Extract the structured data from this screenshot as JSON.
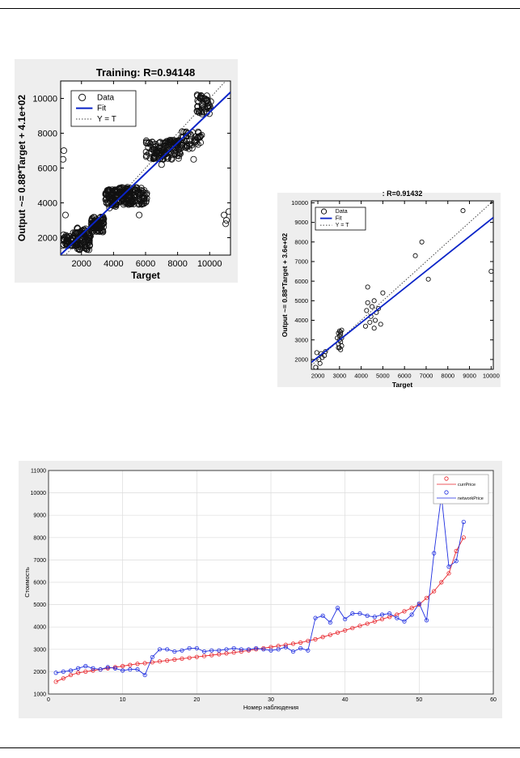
{
  "chart_data": [
    {
      "type": "scatter",
      "title": "Training: R=0.94148",
      "xlabel": "Target",
      "ylabel": "Output ~= 0.88*Target + 4.1e+02",
      "xlim": [
        700,
        11300
      ],
      "ylim": [
        1000,
        11000
      ],
      "xticks": [
        2000,
        4000,
        6000,
        8000,
        10000
      ],
      "yticks": [
        2000,
        4000,
        6000,
        8000,
        10000
      ],
      "legend": {
        "placement": "top-left",
        "entries": [
          "Data",
          "Fit",
          "Y = T"
        ]
      },
      "fit": {
        "slope": 0.88,
        "intercept": 410
      },
      "clusters": [
        {
          "x": [
            800,
            1700
          ],
          "y": [
            1500,
            2300
          ],
          "n": 60
        },
        {
          "x": [
            1700,
            2600
          ],
          "y": [
            1300,
            2600
          ],
          "n": 90
        },
        {
          "x": [
            2600,
            3400
          ],
          "y": [
            2300,
            3200
          ],
          "n": 90
        },
        {
          "x": [
            3500,
            4200
          ],
          "y": [
            3700,
            4800
          ],
          "n": 80
        },
        {
          "x": [
            4200,
            6100
          ],
          "y": [
            3900,
            4900
          ],
          "n": 150
        },
        {
          "x": [
            6000,
            8200
          ],
          "y": [
            6500,
            7600
          ],
          "n": 140
        },
        {
          "x": [
            8200,
            9500
          ],
          "y": [
            7100,
            8100
          ],
          "n": 50
        },
        {
          "x": [
            9200,
            10100
          ],
          "y": [
            9100,
            10300
          ],
          "n": 45
        }
      ],
      "outliers": [
        [
          1000,
          3300
        ],
        [
          900,
          7000
        ],
        [
          850,
          6500
        ],
        [
          10900,
          3300
        ],
        [
          11050,
          3000
        ],
        [
          11200,
          3500
        ],
        [
          11000,
          2800
        ],
        [
          7000,
          6200
        ],
        [
          5600,
          3300
        ],
        [
          9000,
          6500
        ]
      ]
    },
    {
      "type": "scatter",
      "title": ": R=0.91432",
      "xlabel": "Target",
      "ylabel": "Output ~= 0.88*Target + 3.6e+02",
      "xlim": [
        1700,
        10100
      ],
      "ylim": [
        1500,
        10100
      ],
      "xticks": [
        2000,
        3000,
        4000,
        5000,
        6000,
        7000,
        8000,
        9000,
        10000
      ],
      "yticks": [
        2000,
        3000,
        4000,
        5000,
        6000,
        7000,
        8000,
        9000,
        10000
      ],
      "legend": {
        "placement": "top-left",
        "entries": [
          "Data",
          "Fit",
          "Y = T"
        ]
      },
      "fit": {
        "slope": 0.88,
        "intercept": 360
      },
      "points": [
        [
          1900,
          1600
        ],
        [
          1950,
          2350
        ],
        [
          2050,
          2000
        ],
        [
          2100,
          1800
        ],
        [
          2150,
          2300
        ],
        [
          2200,
          2100
        ],
        [
          2300,
          2200
        ],
        [
          2350,
          2400
        ],
        [
          2950,
          2600
        ],
        [
          2950,
          2800
        ],
        [
          3000,
          3000
        ],
        [
          3000,
          3200
        ],
        [
          3050,
          3400
        ],
        [
          3000,
          2600
        ],
        [
          3050,
          2900
        ],
        [
          3100,
          3100
        ],
        [
          3050,
          3300
        ],
        [
          3100,
          2700
        ],
        [
          2950,
          3350
        ],
        [
          3000,
          3450
        ],
        [
          3100,
          3500
        ],
        [
          2900,
          3100
        ],
        [
          3050,
          2500
        ],
        [
          4200,
          3700
        ],
        [
          4250,
          4500
        ],
        [
          4300,
          4900
        ],
        [
          4300,
          5700
        ],
        [
          4400,
          3900
        ],
        [
          4450,
          4200
        ],
        [
          4500,
          4700
        ],
        [
          4600,
          3600
        ],
        [
          4600,
          5000
        ],
        [
          4650,
          4000
        ],
        [
          4700,
          4400
        ],
        [
          4800,
          4600
        ],
        [
          4900,
          3800
        ],
        [
          5000,
          5400
        ],
        [
          6500,
          7300
        ],
        [
          6800,
          8000
        ],
        [
          7100,
          6100
        ],
        [
          8700,
          9600
        ],
        [
          10000,
          6500
        ]
      ]
    },
    {
      "type": "line",
      "title": "",
      "xlabel": "Номер наблюдения",
      "ylabel": "Стоимость",
      "xlim": [
        0,
        60
      ],
      "ylim": [
        1000,
        11000
      ],
      "xticks": [
        0,
        10,
        20,
        30,
        40,
        50,
        60
      ],
      "yticks": [
        1000,
        2000,
        3000,
        4000,
        5000,
        6000,
        7000,
        8000,
        9000,
        10000,
        11000
      ],
      "grid": true,
      "legend": {
        "placement": "top-right"
      },
      "x": [
        1,
        2,
        3,
        4,
        5,
        6,
        7,
        8,
        9,
        10,
        11,
        12,
        13,
        14,
        15,
        16,
        17,
        18,
        19,
        20,
        21,
        22,
        23,
        24,
        25,
        26,
        27,
        28,
        29,
        30,
        31,
        32,
        33,
        34,
        35,
        36,
        37,
        38,
        39,
        40,
        41,
        42,
        43,
        44,
        45,
        46,
        47,
        48,
        49,
        50,
        51,
        52,
        53,
        54,
        55,
        56
      ],
      "series": [
        {
          "name": "currPrice",
          "color": "#e8232a",
          "values": [
            1550,
            1700,
            1850,
            1950,
            2000,
            2050,
            2100,
            2150,
            2200,
            2250,
            2300,
            2350,
            2380,
            2420,
            2460,
            2500,
            2540,
            2580,
            2620,
            2660,
            2700,
            2740,
            2780,
            2820,
            2860,
            2900,
            2950,
            3000,
            3050,
            3100,
            3150,
            3200,
            3250,
            3300,
            3380,
            3450,
            3550,
            3650,
            3750,
            3850,
            3950,
            4050,
            4150,
            4250,
            4350,
            4450,
            4550,
            4700,
            4850,
            5000,
            5300,
            5600,
            6000,
            6400,
            7400,
            8000
          ]
        },
        {
          "name": "networkPrice",
          "color": "#1f2ee0",
          "values": [
            1950,
            2000,
            2050,
            2150,
            2250,
            2150,
            2100,
            2200,
            2150,
            2050,
            2100,
            2100,
            1850,
            2650,
            3000,
            3000,
            2900,
            2950,
            3050,
            3050,
            2900,
            2950,
            2950,
            3000,
            3050,
            3000,
            3000,
            3050,
            3000,
            2950,
            3000,
            3100,
            2900,
            3050,
            2950,
            4400,
            4500,
            4200,
            4850,
            4350,
            4600,
            4600,
            4500,
            4450,
            4550,
            4600,
            4400,
            4250,
            4550,
            5050,
            4300,
            7300,
            9900,
            6700,
            6950,
            8700
          ]
        }
      ]
    }
  ]
}
